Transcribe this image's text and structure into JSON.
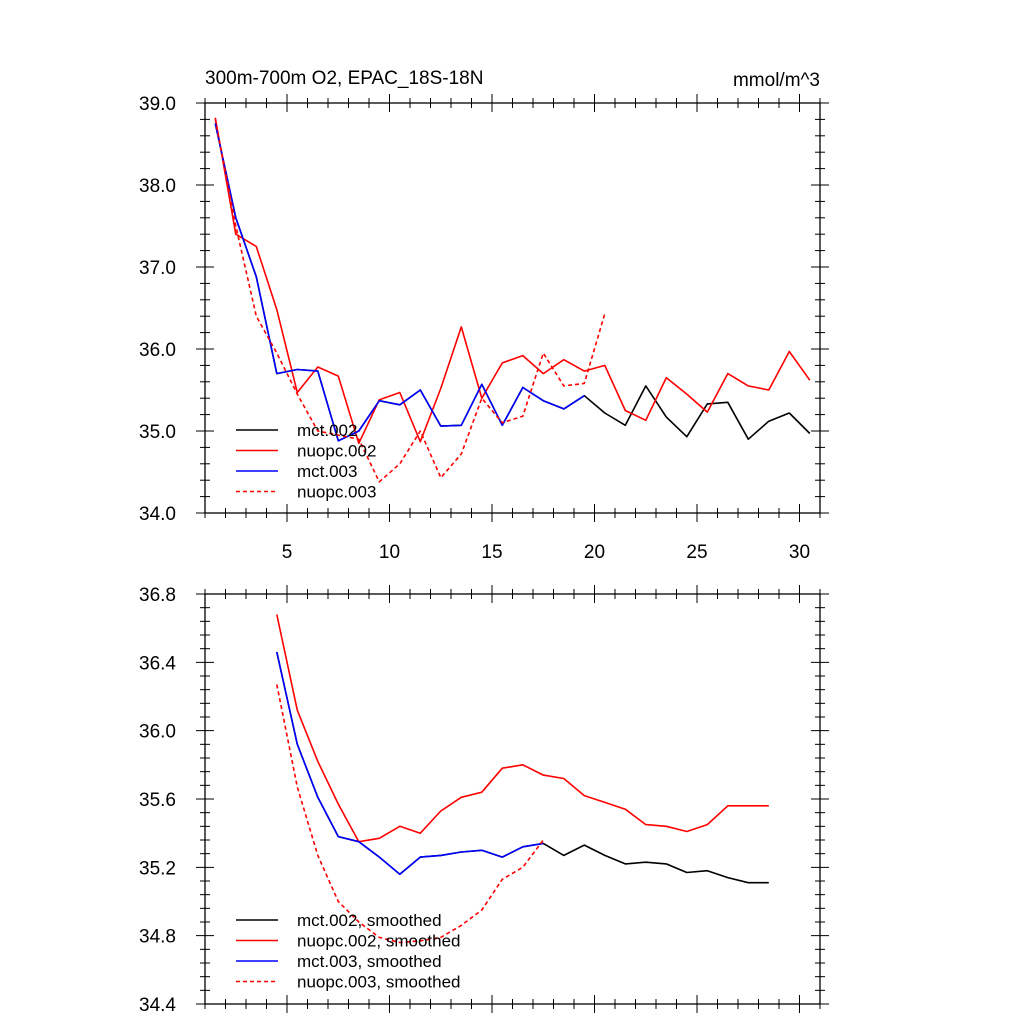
{
  "chart_data": [
    {
      "type": "line",
      "title": "300m-700m O2, EPAC_18S-18N",
      "units": "mmol/m^3",
      "xlim": [
        1,
        31
      ],
      "ylim": [
        34.0,
        39.0
      ],
      "x_tick_labels": [
        "5",
        "10",
        "15",
        "20",
        "25",
        "30"
      ],
      "y_tick_labels": [
        "34.0",
        "35.0",
        "36.0",
        "37.0",
        "38.0",
        "39.0"
      ],
      "grid": false,
      "legend_position": "bottom-left",
      "series": [
        {
          "name": "mct.002",
          "color": "#000000",
          "dash": "solid",
          "x": [
            1.5,
            2.5,
            3.5,
            4.5,
            5.5,
            6.5,
            7.5,
            8.5,
            9.5,
            10.5,
            11.5,
            12.5,
            13.5,
            14.5,
            15.5,
            16.5,
            17.5,
            18.5,
            19.5,
            20.5,
            21.5,
            22.5,
            23.5,
            24.5,
            25.5,
            26.5,
            27.5,
            28.5,
            29.5,
            30.5
          ],
          "values": [
            38.75,
            37.6,
            36.88,
            35.7,
            35.75,
            35.73,
            34.88,
            35.0,
            35.37,
            35.32,
            35.5,
            35.06,
            35.07,
            35.57,
            35.07,
            35.53,
            35.37,
            35.27,
            35.43,
            35.22,
            35.07,
            35.55,
            35.17,
            34.93,
            35.33,
            35.35,
            34.9,
            35.12,
            35.22,
            34.97
          ]
        },
        {
          "name": "nuopc.002",
          "color": "#ff0000",
          "dash": "solid",
          "x": [
            1.5,
            2.5,
            3.5,
            4.5,
            5.5,
            6.5,
            7.5,
            8.5,
            9.5,
            10.5,
            11.5,
            12.5,
            13.5,
            14.5,
            15.5,
            16.5,
            17.5,
            18.5,
            19.5,
            20.5,
            21.5,
            22.5,
            23.5,
            24.5,
            25.5,
            26.5,
            27.5,
            28.5,
            29.5,
            30.5
          ],
          "values": [
            38.82,
            37.4,
            37.25,
            36.48,
            35.47,
            35.78,
            35.67,
            34.85,
            35.38,
            35.47,
            34.87,
            35.52,
            36.27,
            35.4,
            35.83,
            35.92,
            35.7,
            35.87,
            35.73,
            35.8,
            35.25,
            35.13,
            35.65,
            35.45,
            35.23,
            35.7,
            35.55,
            35.5,
            35.97,
            35.62
          ]
        },
        {
          "name": "mct.003",
          "color": "#0000ff",
          "dash": "solid",
          "x": [
            1.5,
            2.5,
            3.5,
            4.5,
            5.5,
            6.5,
            7.5,
            8.5,
            9.5,
            10.5,
            11.5,
            12.5,
            13.5,
            14.5,
            15.5,
            16.5,
            17.5,
            18.5,
            19.5
          ],
          "values": [
            38.75,
            37.6,
            36.88,
            35.7,
            35.75,
            35.73,
            34.88,
            35.0,
            35.37,
            35.32,
            35.5,
            35.06,
            35.07,
            35.57,
            35.07,
            35.53,
            35.37,
            35.27,
            35.43
          ]
        },
        {
          "name": "nuopc.003",
          "color": "#ff0000",
          "dash": "dashed",
          "x": [
            1.5,
            2.5,
            3.5,
            4.5,
            5.5,
            6.5,
            7.5,
            8.5,
            9.5,
            10.5,
            11.5,
            12.5,
            13.5,
            14.5,
            15.5,
            16.5,
            17.5,
            18.5,
            19.5,
            20.5
          ],
          "values": [
            38.8,
            37.5,
            36.4,
            35.95,
            35.45,
            35.0,
            34.95,
            34.9,
            34.38,
            34.6,
            35.0,
            34.43,
            34.72,
            35.4,
            35.1,
            35.18,
            35.95,
            35.55,
            35.58,
            36.43
          ]
        }
      ]
    },
    {
      "type": "line",
      "xlim": [
        1,
        31
      ],
      "ylim": [
        34.4,
        36.8
      ],
      "y_tick_labels": [
        "34.4",
        "34.8",
        "35.2",
        "35.6",
        "36.0",
        "36.4",
        "36.8"
      ],
      "grid": false,
      "legend_position": "bottom-left",
      "series": [
        {
          "name": "mct.002, smoothed",
          "color": "#000000",
          "dash": "solid",
          "x": [
            4.5,
            5.5,
            6.5,
            7.5,
            8.5,
            9.5,
            10.5,
            11.5,
            12.5,
            13.5,
            14.5,
            15.5,
            16.5,
            17.5,
            18.5,
            19.5,
            20.5,
            21.5,
            22.5,
            23.5,
            24.5,
            25.5,
            26.5,
            27.5,
            28.5
          ],
          "values": [
            36.46,
            35.92,
            35.61,
            35.38,
            35.35,
            35.26,
            35.16,
            35.26,
            35.27,
            35.29,
            35.3,
            35.26,
            35.32,
            35.34,
            35.27,
            35.33,
            35.27,
            35.22,
            35.23,
            35.22,
            35.17,
            35.18,
            35.14,
            35.11,
            35.11
          ]
        },
        {
          "name": "nuopc.002, smoothed",
          "color": "#ff0000",
          "dash": "solid",
          "x": [
            4.5,
            5.5,
            6.5,
            7.5,
            8.5,
            9.5,
            10.5,
            11.5,
            12.5,
            13.5,
            14.5,
            15.5,
            16.5,
            17.5,
            18.5,
            19.5,
            20.5,
            21.5,
            22.5,
            23.5,
            24.5,
            25.5,
            26.5,
            27.5,
            28.5
          ],
          "values": [
            36.68,
            36.12,
            35.82,
            35.57,
            35.35,
            35.37,
            35.44,
            35.4,
            35.53,
            35.61,
            35.64,
            35.78,
            35.8,
            35.74,
            35.72,
            35.62,
            35.58,
            35.54,
            35.45,
            35.44,
            35.41,
            35.45,
            35.56,
            35.56,
            35.56
          ]
        },
        {
          "name": "mct.003, smoothed",
          "color": "#0000ff",
          "dash": "solid",
          "x": [
            4.5,
            5.5,
            6.5,
            7.5,
            8.5,
            9.5,
            10.5,
            11.5,
            12.5,
            13.5,
            14.5,
            15.5,
            16.5,
            17.5
          ],
          "values": [
            36.46,
            35.92,
            35.61,
            35.38,
            35.35,
            35.26,
            35.16,
            35.26,
            35.27,
            35.29,
            35.3,
            35.26,
            35.32,
            35.34
          ]
        },
        {
          "name": "nuopc.003, smoothed",
          "color": "#ff0000",
          "dash": "dashed",
          "x": [
            4.5,
            5.5,
            6.5,
            7.5,
            8.5,
            9.5,
            10.5,
            11.5,
            12.5,
            13.5,
            14.5,
            15.5,
            16.5,
            17.5
          ],
          "values": [
            36.27,
            35.67,
            35.27,
            35.0,
            34.88,
            34.79,
            34.76,
            34.77,
            34.79,
            34.86,
            34.95,
            35.13,
            35.2,
            35.36
          ]
        }
      ]
    }
  ]
}
